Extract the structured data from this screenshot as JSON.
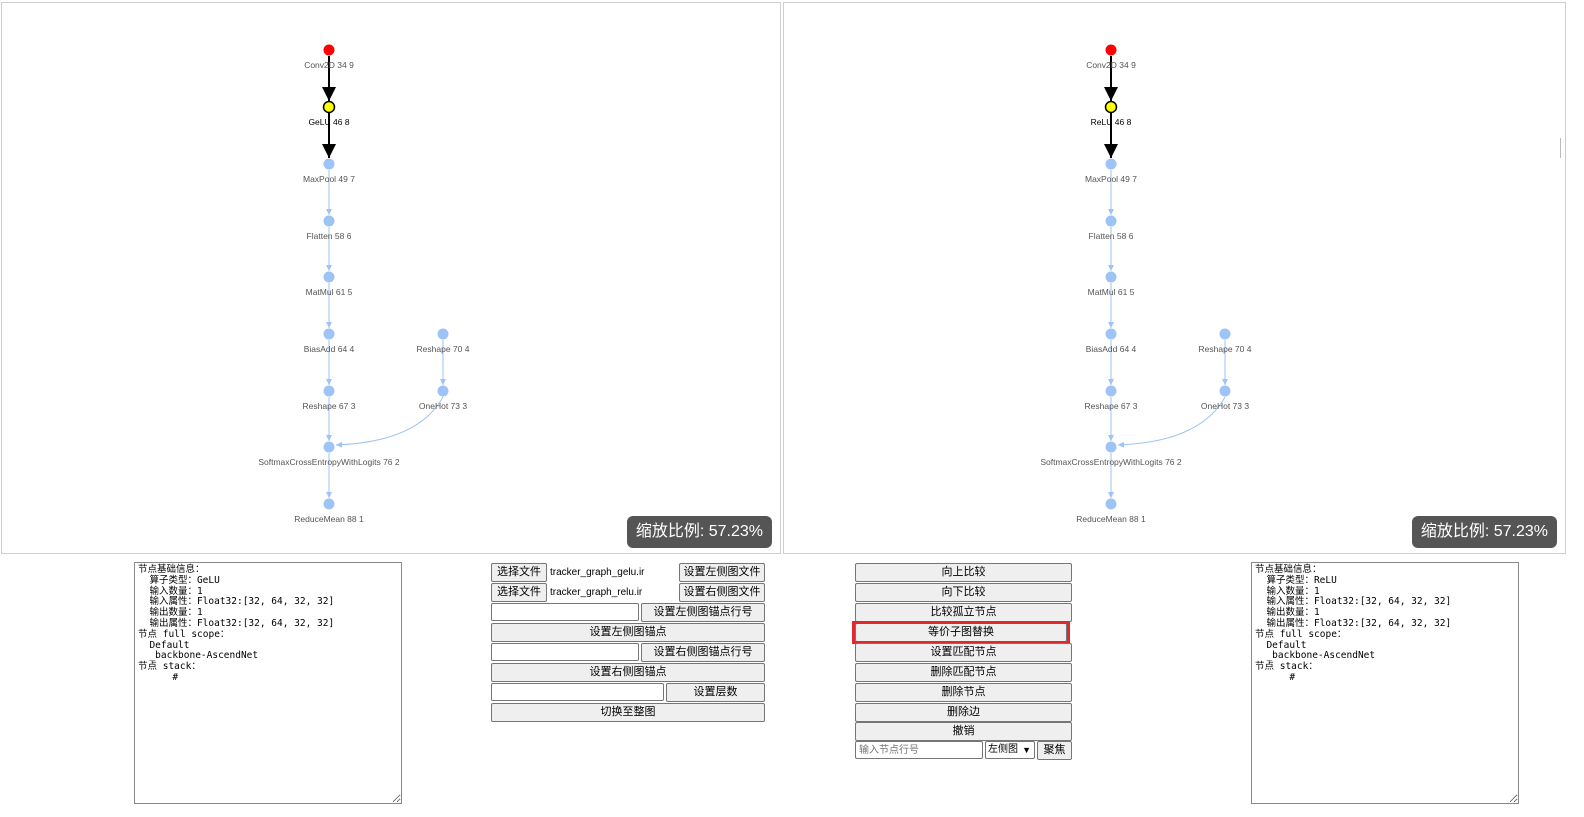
{
  "left_graph": {
    "zoom_label": "缩放比例: 57.23%",
    "nodes": [
      {
        "label": "Conv2D 34 9",
        "color": "#ff0000"
      },
      {
        "label": "GeLU 46 8",
        "color": "#ffff00"
      },
      {
        "label": "MaxPool 49 7",
        "color": "#9ec3f7"
      },
      {
        "label": "Flatten 58 6",
        "color": "#9ec3f7"
      },
      {
        "label": "MatMul 61 5",
        "color": "#9ec3f7"
      },
      {
        "label": "BiasAdd 64 4",
        "color": "#9ec3f7"
      },
      {
        "label": "Reshape 67 3",
        "color": "#9ec3f7"
      },
      {
        "label": "SoftmaxCrossEntropyWithLogits 76 2",
        "color": "#9ec3f7"
      },
      {
        "label": "ReduceMean 88 1",
        "color": "#9ec3f7"
      },
      {
        "label": "Reshape 70 4",
        "color": "#9ec3f7"
      },
      {
        "label": "OneHot 73 3",
        "color": "#9ec3f7"
      }
    ]
  },
  "right_graph": {
    "zoom_label": "缩放比例: 57.23%",
    "nodes": [
      {
        "label": "Conv2D 34 9",
        "color": "#ff0000"
      },
      {
        "label": "ReLU 46 8",
        "color": "#ffff00"
      },
      {
        "label": "MaxPool 49 7",
        "color": "#9ec3f7"
      },
      {
        "label": "Flatten 58 6",
        "color": "#9ec3f7"
      },
      {
        "label": "MatMul 61 5",
        "color": "#9ec3f7"
      },
      {
        "label": "BiasAdd 64 4",
        "color": "#9ec3f7"
      },
      {
        "label": "Reshape 67 3",
        "color": "#9ec3f7"
      },
      {
        "label": "SoftmaxCrossEntropyWithLogits 76 2",
        "color": "#9ec3f7"
      },
      {
        "label": "ReduceMean 88 1",
        "color": "#9ec3f7"
      },
      {
        "label": "Reshape 70 4",
        "color": "#9ec3f7"
      },
      {
        "label": "OneHot 73 3",
        "color": "#9ec3f7"
      }
    ]
  },
  "left_info": "节点基础信息：\n  算子类型：GeLU\n  输入数量：1\n  输入属性：Float32:[32, 64, 32, 32]\n  输出数量：1\n  输出属性：Float32:[32, 64, 32, 32]\n节点 full scope：\n  Default\n  _backbone-AscendNet\n节点 stack：\n      #",
  "right_info": "节点基础信息：\n  算子类型：ReLU\n  输入数量：1\n  输入属性：Float32:[32, 64, 32, 32]\n  输出数量：1\n  输出属性：Float32:[32, 64, 32, 32]\n节点 full scope：\n  Default\n  _backbone-AscendNet\n节点 stack：\n      #",
  "files": {
    "choose_label": "选择文件",
    "left_file": "tracker_graph_gelu.ir",
    "right_file": "tracker_graph_relu.ir",
    "set_left_file": "设置左侧图文件",
    "set_right_file": "设置右侧图文件",
    "set_left_anchor_line": "设置左侧图锚点行号",
    "set_left_anchor": "设置左侧图锚点",
    "set_right_anchor_line": "设置右侧图锚点行号",
    "set_right_anchor": "设置右侧图锚点",
    "set_depth": "设置层数",
    "switch_full": "切换至整图"
  },
  "actions": {
    "compare_up": "向上比较",
    "compare_down": "向下比较",
    "compare_isolated": "比较孤立节点",
    "subgraph_replace": "等价子图替换",
    "set_match": "设置匹配节点",
    "delete_match": "删除匹配节点",
    "delete_node": "删除节点",
    "delete_edge": "删除边",
    "undo": "撤销",
    "node_line_placeholder": "输入节点行号",
    "side_select": "左侧图",
    "focus": "聚焦"
  }
}
